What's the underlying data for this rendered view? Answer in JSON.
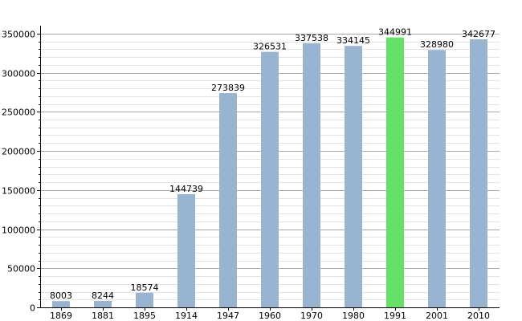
{
  "chart_data": {
    "type": "bar",
    "title": "",
    "xlabel": "",
    "ylabel": "",
    "categories": [
      "1869",
      "1881",
      "1895",
      "1914",
      "1947",
      "1960",
      "1970",
      "1980",
      "1991",
      "2001",
      "2010"
    ],
    "values": [
      8003,
      8244,
      18574,
      144739,
      273839,
      326531,
      337538,
      334145,
      344991,
      328980,
      342677
    ],
    "value_labels": [
      "8003",
      "8244",
      "18574",
      "144739",
      "273839",
      "326531",
      "337538",
      "334145",
      "344991",
      "328980",
      "342677"
    ],
    "ylim": [
      0,
      360000
    ],
    "yticks": [
      "0",
      "50000",
      "100000",
      "150000",
      "200000",
      "250000",
      "300000",
      "350000"
    ],
    "highlight_index": 8,
    "grid": true,
    "legend": "none",
    "colors": {
      "bar": "#98b4d0",
      "highlight": "#66e066",
      "grid_major": "#aaaaaa",
      "grid_minor": "#e2e2e2",
      "axis": "#000000"
    }
  }
}
